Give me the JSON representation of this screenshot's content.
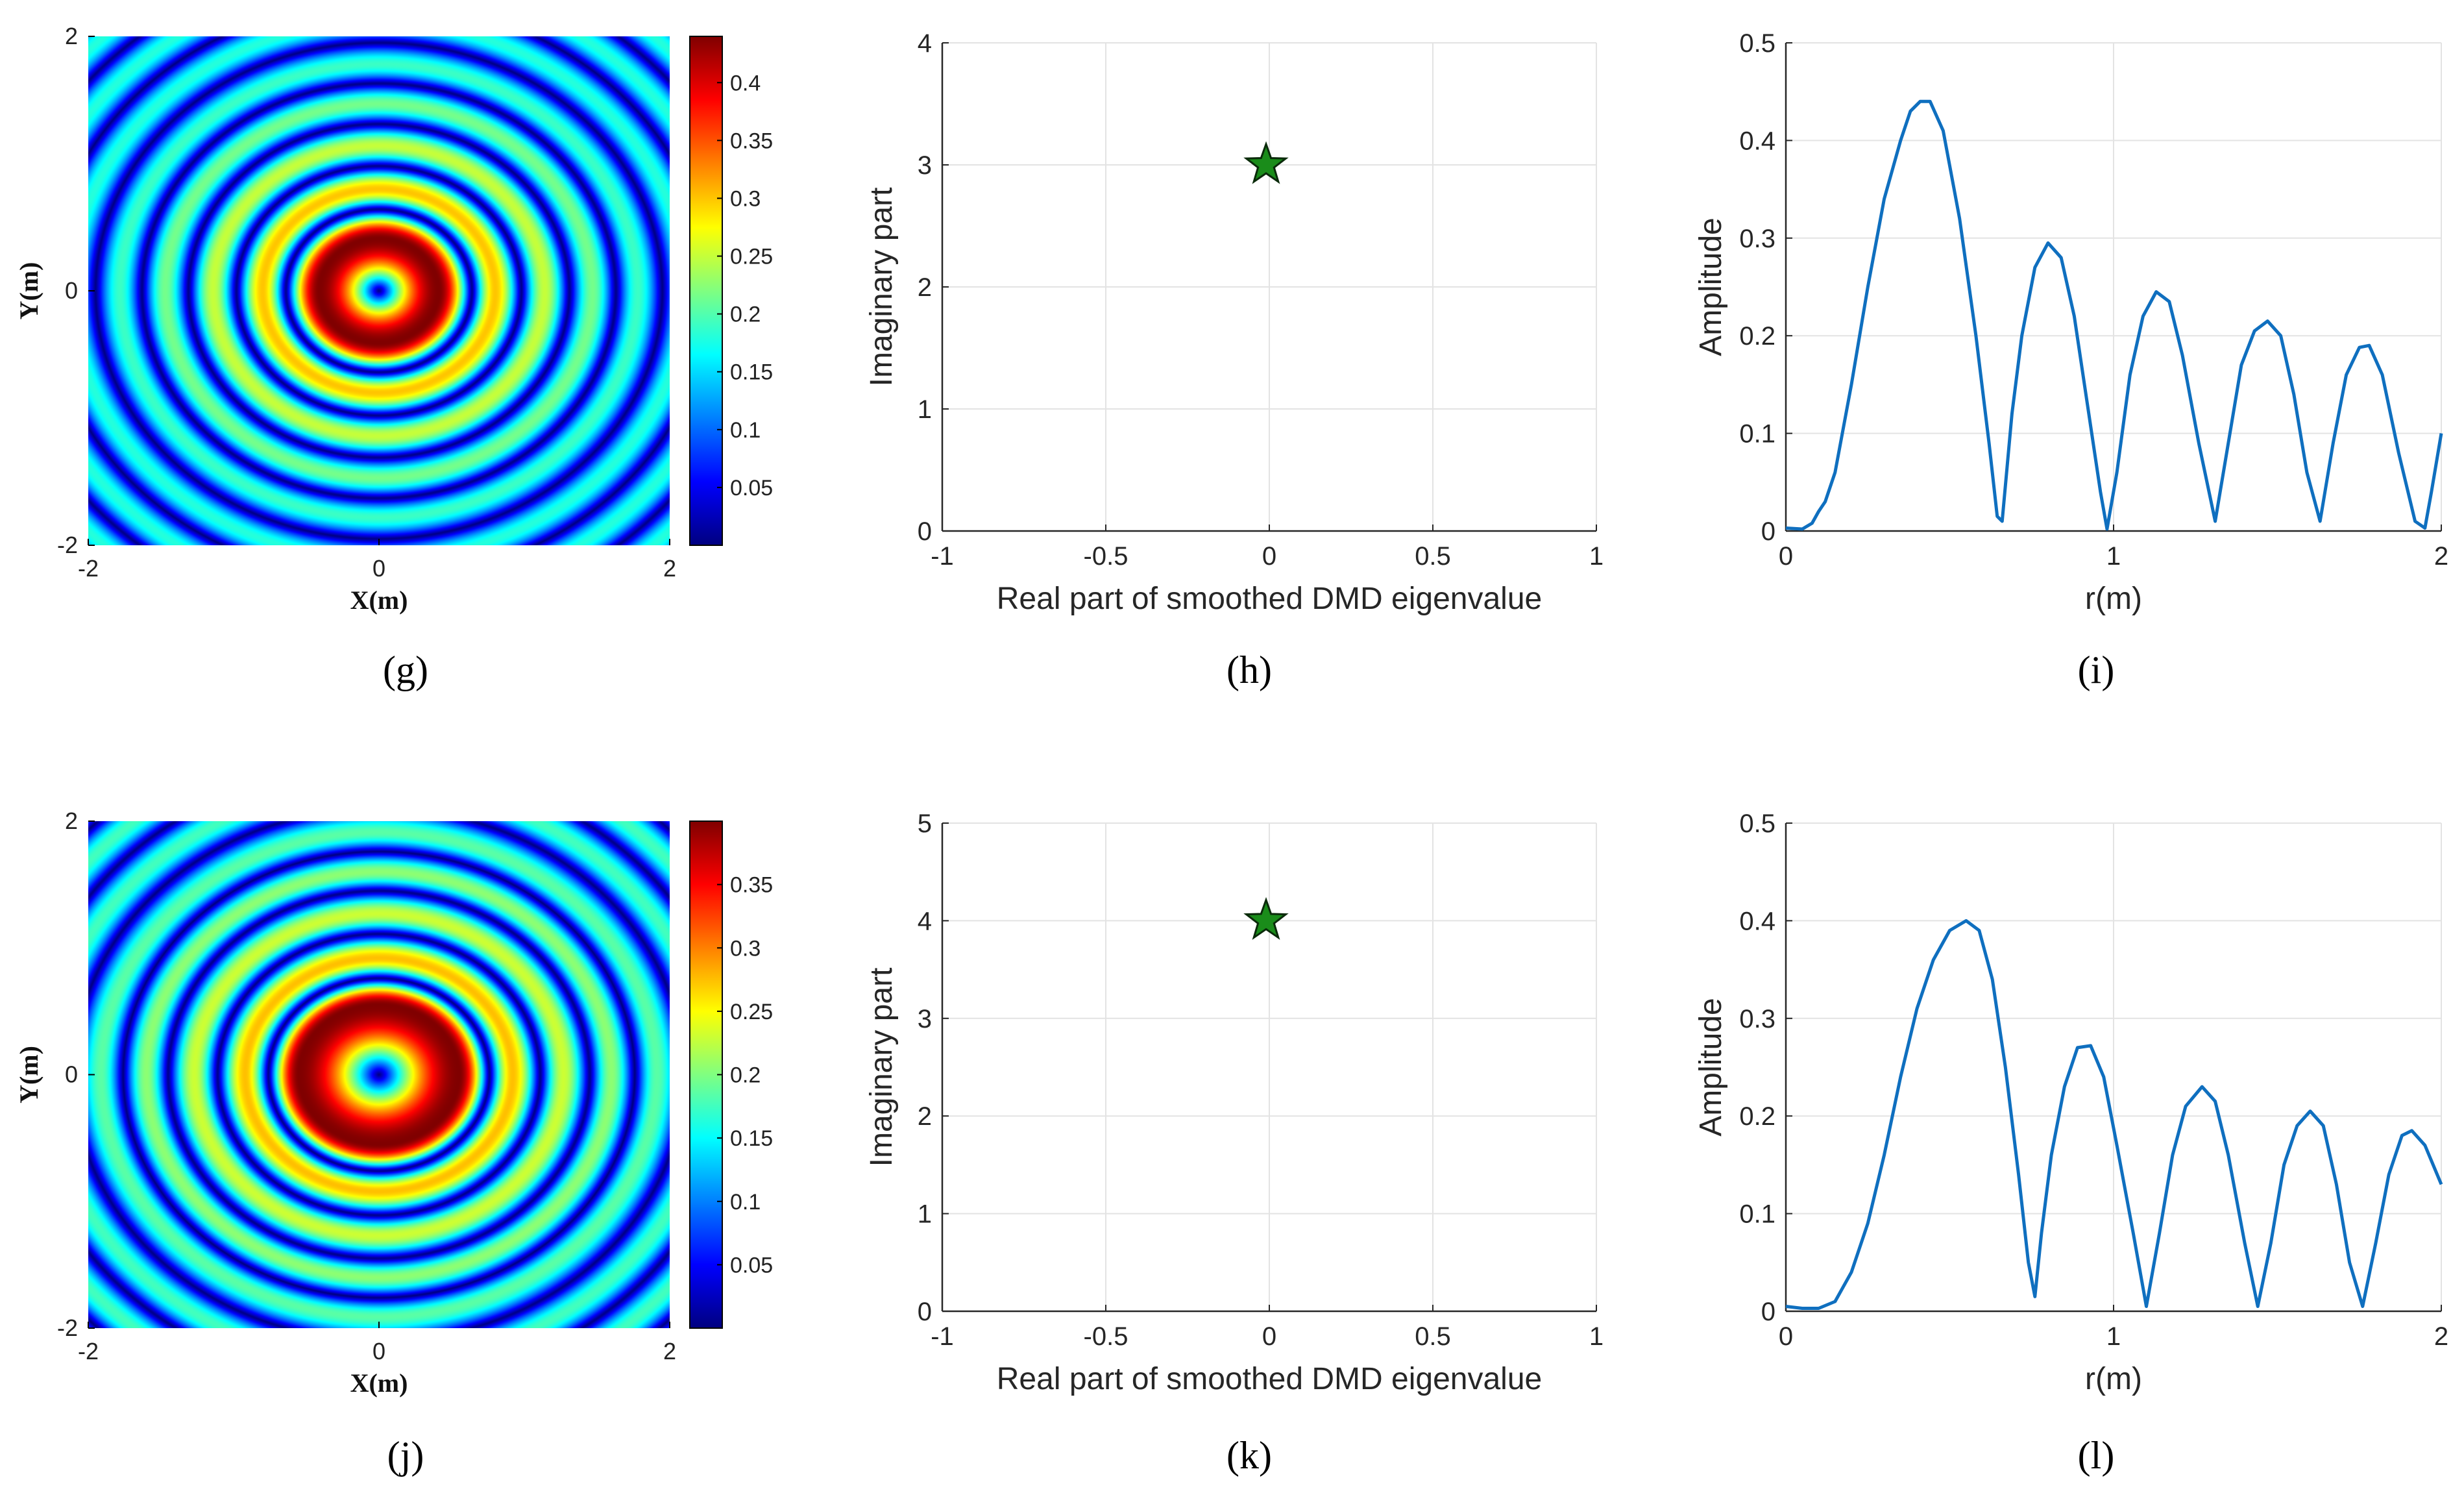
{
  "chart_data": [
    {
      "panel": "g",
      "type": "heatmap",
      "caption": "(g)",
      "xlabel": "X(m)",
      "ylabel": "Y(m)",
      "xlim": [
        -2,
        2
      ],
      "ylim": [
        -2,
        2
      ],
      "xticks": [
        "-2",
        "0",
        "2"
      ],
      "yticks": [
        "-2",
        "0",
        "2"
      ],
      "colormap": "jet",
      "color_range": [
        0.0,
        0.44
      ],
      "colorbar_ticks": [
        "0.05",
        "0.1",
        "0.15",
        "0.2",
        "0.25",
        "0.3",
        "0.35",
        "0.4"
      ],
      "colorbar_tick_values": [
        0.05,
        0.1,
        0.15,
        0.2,
        0.25,
        0.3,
        0.35,
        0.4
      ],
      "radial_peaks": [
        [
          0.41,
          0.44
        ],
        [
          0.8,
          0.3
        ],
        [
          1.14,
          0.25
        ],
        [
          1.47,
          0.215
        ],
        [
          1.78,
          0.19
        ]
      ],
      "radial_zeros": [
        0.0,
        0.64,
        0.98,
        1.31,
        1.63,
        1.95
      ]
    },
    {
      "panel": "h",
      "type": "scatter",
      "caption": "(h)",
      "xlabel": "Real part of  smoothed DMD eigenvalue",
      "ylabel": "Imaginary part",
      "xlim": [
        -1,
        1
      ],
      "ylim": [
        0,
        4
      ],
      "xticks": [
        "-1",
        "-0.5",
        "0",
        "0.5",
        "1"
      ],
      "yticks": [
        "0",
        "1",
        "2",
        "3",
        "4"
      ],
      "grid": true,
      "marker": "star",
      "marker_color": "#1a8c1a",
      "points": [
        {
          "x": -0.01,
          "y": 3.0
        }
      ]
    },
    {
      "panel": "i",
      "type": "line",
      "caption": "(i)",
      "xlabel": "r(m)",
      "ylabel": "Amplitude",
      "xlim": [
        0,
        2
      ],
      "ylim": [
        0,
        0.5
      ],
      "xticks": [
        "0",
        "1",
        "2"
      ],
      "yticks": [
        "0",
        "0.1",
        "0.2",
        "0.3",
        "0.4",
        "0.5"
      ],
      "grid": true,
      "line_color": "#0f6fbf",
      "points": [
        [
          0,
          0.003
        ],
        [
          0.05,
          0.002
        ],
        [
          0.08,
          0.008
        ],
        [
          0.1,
          0.02
        ],
        [
          0.12,
          0.03
        ],
        [
          0.15,
          0.06
        ],
        [
          0.2,
          0.15
        ],
        [
          0.25,
          0.25
        ],
        [
          0.3,
          0.34
        ],
        [
          0.35,
          0.4
        ],
        [
          0.38,
          0.43
        ],
        [
          0.41,
          0.44
        ],
        [
          0.44,
          0.44
        ],
        [
          0.48,
          0.41
        ],
        [
          0.53,
          0.32
        ],
        [
          0.58,
          0.2
        ],
        [
          0.62,
          0.09
        ],
        [
          0.645,
          0.015
        ],
        [
          0.66,
          0.01
        ],
        [
          0.69,
          0.12
        ],
        [
          0.72,
          0.2
        ],
        [
          0.76,
          0.27
        ],
        [
          0.8,
          0.295
        ],
        [
          0.84,
          0.28
        ],
        [
          0.88,
          0.22
        ],
        [
          0.92,
          0.13
        ],
        [
          0.96,
          0.04
        ],
        [
          0.98,
          0.002
        ],
        [
          1.01,
          0.06
        ],
        [
          1.05,
          0.16
        ],
        [
          1.09,
          0.22
        ],
        [
          1.13,
          0.245
        ],
        [
          1.17,
          0.235
        ],
        [
          1.21,
          0.18
        ],
        [
          1.26,
          0.09
        ],
        [
          1.31,
          0.01
        ],
        [
          1.35,
          0.09
        ],
        [
          1.39,
          0.17
        ],
        [
          1.43,
          0.205
        ],
        [
          1.47,
          0.215
        ],
        [
          1.51,
          0.2
        ],
        [
          1.55,
          0.14
        ],
        [
          1.59,
          0.06
        ],
        [
          1.63,
          0.01
        ],
        [
          1.67,
          0.09
        ],
        [
          1.71,
          0.16
        ],
        [
          1.75,
          0.188
        ],
        [
          1.78,
          0.19
        ],
        [
          1.82,
          0.16
        ],
        [
          1.87,
          0.08
        ],
        [
          1.92,
          0.01
        ],
        [
          1.95,
          0.003
        ],
        [
          1.97,
          0.04
        ],
        [
          2.0,
          0.1
        ]
      ]
    },
    {
      "panel": "j",
      "type": "heatmap",
      "caption": "(j)",
      "xlabel": "X(m)",
      "ylabel": "Y(m)",
      "xlim": [
        -2,
        2
      ],
      "ylim": [
        -2,
        2
      ],
      "xticks": [
        "-2",
        "0",
        "2"
      ],
      "yticks": [
        "-2",
        "0",
        "2"
      ],
      "colormap": "jet",
      "color_range": [
        0.0,
        0.4
      ],
      "colorbar_ticks": [
        "0.05",
        "0.1",
        "0.15",
        "0.2",
        "0.25",
        "0.3",
        "0.35"
      ],
      "colorbar_tick_values": [
        0.05,
        0.1,
        0.15,
        0.2,
        0.25,
        0.3,
        0.35
      ],
      "radial_peaks": [
        [
          0.55,
          0.4
        ],
        [
          0.92,
          0.275
        ],
        [
          1.27,
          0.23
        ],
        [
          1.6,
          0.205
        ],
        [
          1.91,
          0.185
        ]
      ],
      "radial_zeros": [
        0.0,
        0.76,
        1.11,
        1.45,
        1.76,
        2.1
      ]
    },
    {
      "panel": "k",
      "type": "scatter",
      "caption": "(k)",
      "xlabel": "Real part of  smoothed DMD eigenvalue",
      "ylabel": "Imaginary part",
      "xlim": [
        -1,
        1
      ],
      "ylim": [
        0,
        5
      ],
      "xticks": [
        "-1",
        "-0.5",
        "0",
        "0.5",
        "1"
      ],
      "yticks": [
        "0",
        "1",
        "2",
        "3",
        "4",
        "5"
      ],
      "grid": true,
      "marker": "star",
      "marker_color": "#1a8c1a",
      "points": [
        {
          "x": -0.01,
          "y": 4.0
        }
      ]
    },
    {
      "panel": "l",
      "type": "line",
      "caption": "(l)",
      "xlabel": "r(m)",
      "ylabel": "Amplitude",
      "xlim": [
        0,
        2
      ],
      "ylim": [
        0,
        0.5
      ],
      "xticks": [
        "0",
        "1",
        "2"
      ],
      "yticks": [
        "0",
        "0.1",
        "0.2",
        "0.3",
        "0.4",
        "0.5"
      ],
      "grid": true,
      "line_color": "#0f6fbf",
      "points": [
        [
          0,
          0.005
        ],
        [
          0.05,
          0.003
        ],
        [
          0.1,
          0.003
        ],
        [
          0.15,
          0.01
        ],
        [
          0.2,
          0.04
        ],
        [
          0.25,
          0.09
        ],
        [
          0.3,
          0.16
        ],
        [
          0.35,
          0.24
        ],
        [
          0.4,
          0.31
        ],
        [
          0.45,
          0.36
        ],
        [
          0.5,
          0.39
        ],
        [
          0.55,
          0.4
        ],
        [
          0.59,
          0.39
        ],
        [
          0.63,
          0.34
        ],
        [
          0.67,
          0.25
        ],
        [
          0.71,
          0.14
        ],
        [
          0.74,
          0.05
        ],
        [
          0.76,
          0.015
        ],
        [
          0.78,
          0.08
        ],
        [
          0.81,
          0.16
        ],
        [
          0.85,
          0.23
        ],
        [
          0.89,
          0.27
        ],
        [
          0.93,
          0.272
        ],
        [
          0.97,
          0.24
        ],
        [
          1.01,
          0.17
        ],
        [
          1.06,
          0.08
        ],
        [
          1.1,
          0.005
        ],
        [
          1.14,
          0.08
        ],
        [
          1.18,
          0.16
        ],
        [
          1.22,
          0.21
        ],
        [
          1.27,
          0.23
        ],
        [
          1.31,
          0.215
        ],
        [
          1.35,
          0.16
        ],
        [
          1.4,
          0.07
        ],
        [
          1.44,
          0.005
        ],
        [
          1.48,
          0.07
        ],
        [
          1.52,
          0.15
        ],
        [
          1.56,
          0.19
        ],
        [
          1.6,
          0.205
        ],
        [
          1.64,
          0.19
        ],
        [
          1.68,
          0.13
        ],
        [
          1.72,
          0.05
        ],
        [
          1.76,
          0.005
        ],
        [
          1.8,
          0.07
        ],
        [
          1.84,
          0.14
        ],
        [
          1.88,
          0.18
        ],
        [
          1.91,
          0.185
        ],
        [
          1.95,
          0.17
        ],
        [
          2.0,
          0.13
        ]
      ]
    }
  ]
}
